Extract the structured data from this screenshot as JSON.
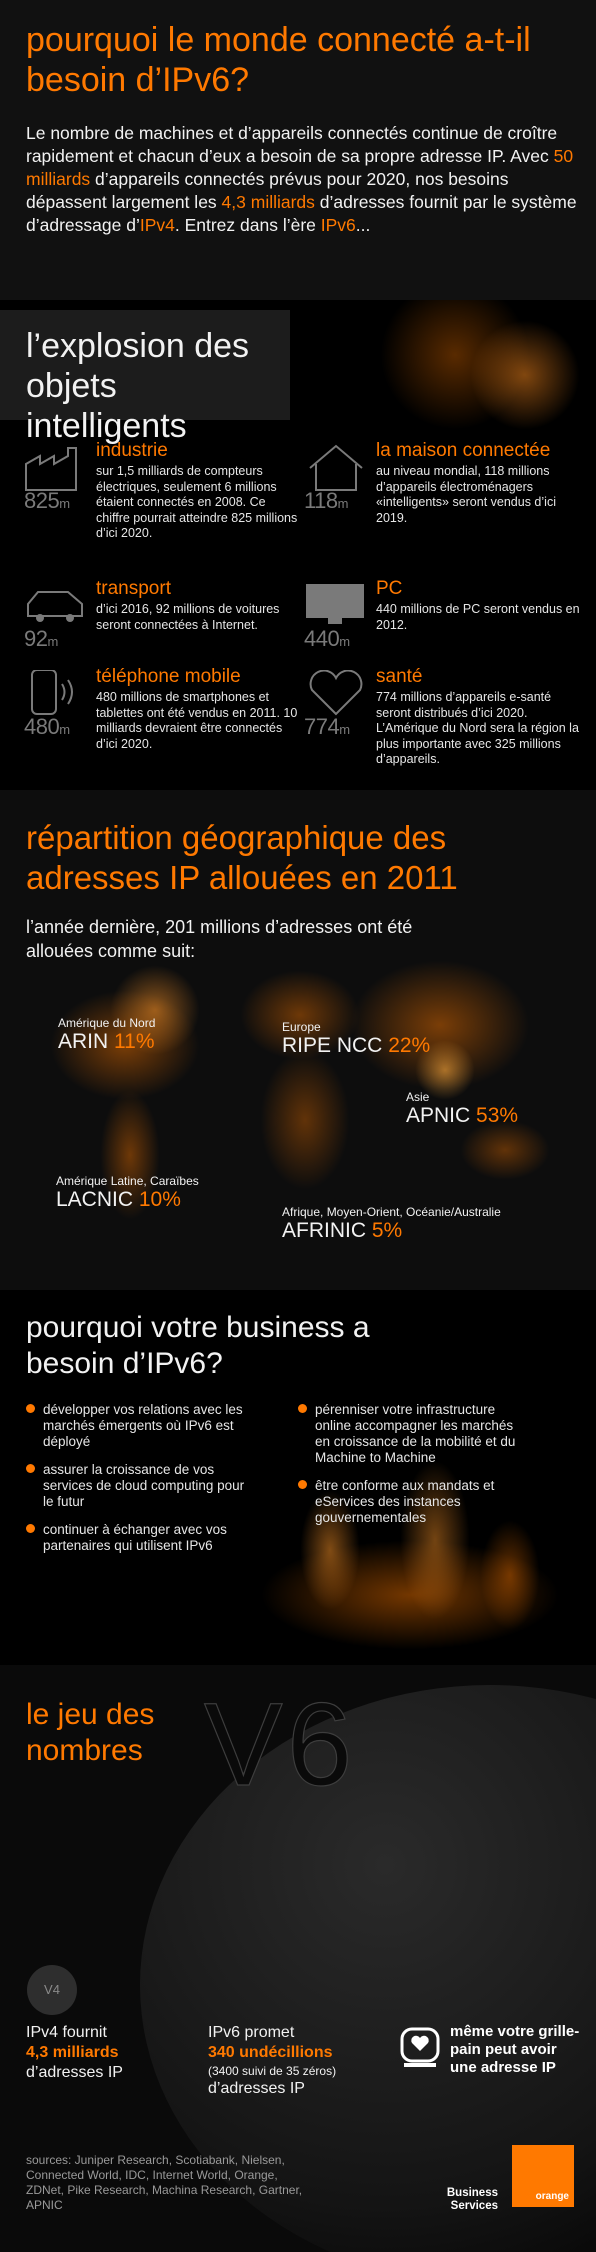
{
  "intro": {
    "title": "pourquoi le monde connecté a-t-il besoin d’IPv6?",
    "p1": "Le nombre de machines et d’appareils connectés continue de croître rapidement et chacun d’eux a besoin de sa propre adresse IP. Avec ",
    "hl1": "50 milliards",
    "p2": " d’appareils connectés prévus pour 2020, nos besoins dépassent largement les ",
    "hl2": "4,3 milliards",
    "p3": " d’adresses fournit par le système d’adressage d’",
    "hl3": "IPv4",
    "p4": ". Entrez dans l’ère ",
    "hl4": "IPv6",
    "p5": "..."
  },
  "objects": {
    "title": "l’explosion des objets intelligents",
    "items": [
      {
        "icon": "factory-icon",
        "num": "825",
        "unit": "m",
        "heading": "industrie",
        "text": "sur 1,5 milliards de compteurs électriques, seulement 6 millions étaient connectés en 2008. Ce chiffre pourrait atteindre 825 millions d’ici 2020."
      },
      {
        "icon": "house-icon",
        "num": "118",
        "unit": "m",
        "heading": "la maison connectée",
        "text": "au niveau mondial, 118 millions d’appareils électroménagers «intelligents» seront vendus d’ici 2019."
      },
      {
        "icon": "car-icon",
        "num": "92",
        "unit": "m",
        "heading": "transport",
        "text": "d’ici 2016, 92 millions de voitures seront connectées à Internet."
      },
      {
        "icon": "monitor-icon",
        "num": "440",
        "unit": "m",
        "heading": "PC",
        "text": "440 millions de PC seront vendus en 2012."
      },
      {
        "icon": "phone-icon",
        "num": "480",
        "unit": "m",
        "heading": "téléphone mobile",
        "text": "480 millions de smartphones et tablettes ont été vendus en 2011. 10 milliards devraient être connectés d’ici 2020."
      },
      {
        "icon": "heart-icon",
        "num": "774",
        "unit": "m",
        "heading": "santé",
        "text": "774 millions d’appareils e-santé seront distribués d’ici 2020. L’Amérique du Nord sera la région la plus importante avec 325 millions d’appareils."
      }
    ]
  },
  "geo": {
    "title": "répartition géographique des adresses IP allouées en 2011",
    "lead": "l’année dernière, 201 millions d’adresses ont été allouées comme suit:",
    "regions": [
      {
        "region": "Amérique du Nord",
        "rir": "ARIN",
        "pct": "11%"
      },
      {
        "region": "Europe",
        "rir": "RIPE NCC",
        "pct": "22%"
      },
      {
        "region": "Asie",
        "rir": "APNIC",
        "pct": "53%"
      },
      {
        "region": "Amérique Latine, Caraïbes",
        "rir": "LACNIC",
        "pct": "10%"
      },
      {
        "region": "Afrique, Moyen-Orient, Océanie/Australie",
        "rir": "AFRINIC",
        "pct": "5%"
      }
    ]
  },
  "business": {
    "title": "pourquoi votre business a besoin d’IPv6?",
    "left": [
      "développer vos relations avec les marchés émergents où IPv6 est déployé",
      "assurer la croissance de vos services de cloud computing pour le futur",
      "continuer à échanger avec vos partenaires qui utilisent IPv6"
    ],
    "right": [
      "pérenniser votre infrastructure online accompagner les marchés en croissance de la mobilité et du Machine to Machine",
      "être conforme aux mandats et eServices des instances gouvernementales"
    ]
  },
  "numbers": {
    "title": "le jeu des nombres",
    "v6": "V6",
    "v4": "V4",
    "ipv4_a": "IPv4 fournit",
    "ipv4_b": "4,3 milliards",
    "ipv4_c": "d’adresses IP",
    "ipv6_a": "IPv6 promet",
    "ipv6_b": "340 undécillions",
    "ipv6_note": "(3400 suivi de 35 zéros)",
    "ipv6_c": "d’adresses IP",
    "toaster": "même votre grille-pain peut avoir une adresse IP",
    "sources": "sources: Juniper Research, Scotiabank, Nielsen, Connected World, IDC, Internet World, Orange, ZDNet, Pike Research, Machina Research, Gartner, APNIC",
    "brand_line": "Business Services",
    "logo": "orange"
  },
  "colors": {
    "accent": "#ff7900",
    "background": "#0c0c0c",
    "muted": "#7a7a7a"
  }
}
